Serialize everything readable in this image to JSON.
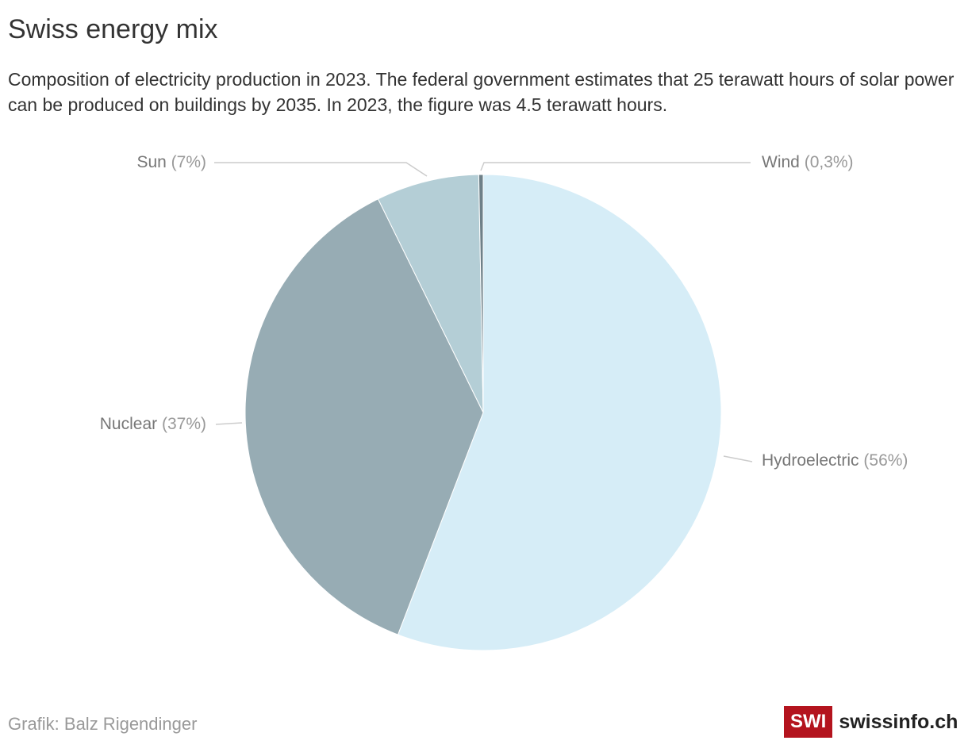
{
  "chart_data": {
    "type": "pie",
    "title": "Swiss energy mix",
    "subtitle": "Composition of electricity production in 2023. The federal government estimates that 25 terawatt hours of solar power can be produced on buildings by 2035. In 2023, the figure was 4.5 terawatt hours.",
    "slices": [
      {
        "name": "Hydroelectric",
        "label_pct": "(56%)",
        "value": 56,
        "color": "#d6edf7"
      },
      {
        "name": "Nuclear",
        "label_pct": "(37%)",
        "value": 37,
        "color": "#97acb4"
      },
      {
        "name": "Sun",
        "label_pct": "(7%)",
        "value": 7,
        "color": "#b4ced6"
      },
      {
        "name": "Wind",
        "label_pct": "(0,3%)",
        "value": 0.3,
        "color": "#6e8088"
      }
    ]
  },
  "footer": {
    "credit": "Grafik: Balz Rigendinger",
    "logo_mark": "SWI",
    "logo_site": "swissinfo.ch",
    "logo_color": "#b4141e"
  }
}
